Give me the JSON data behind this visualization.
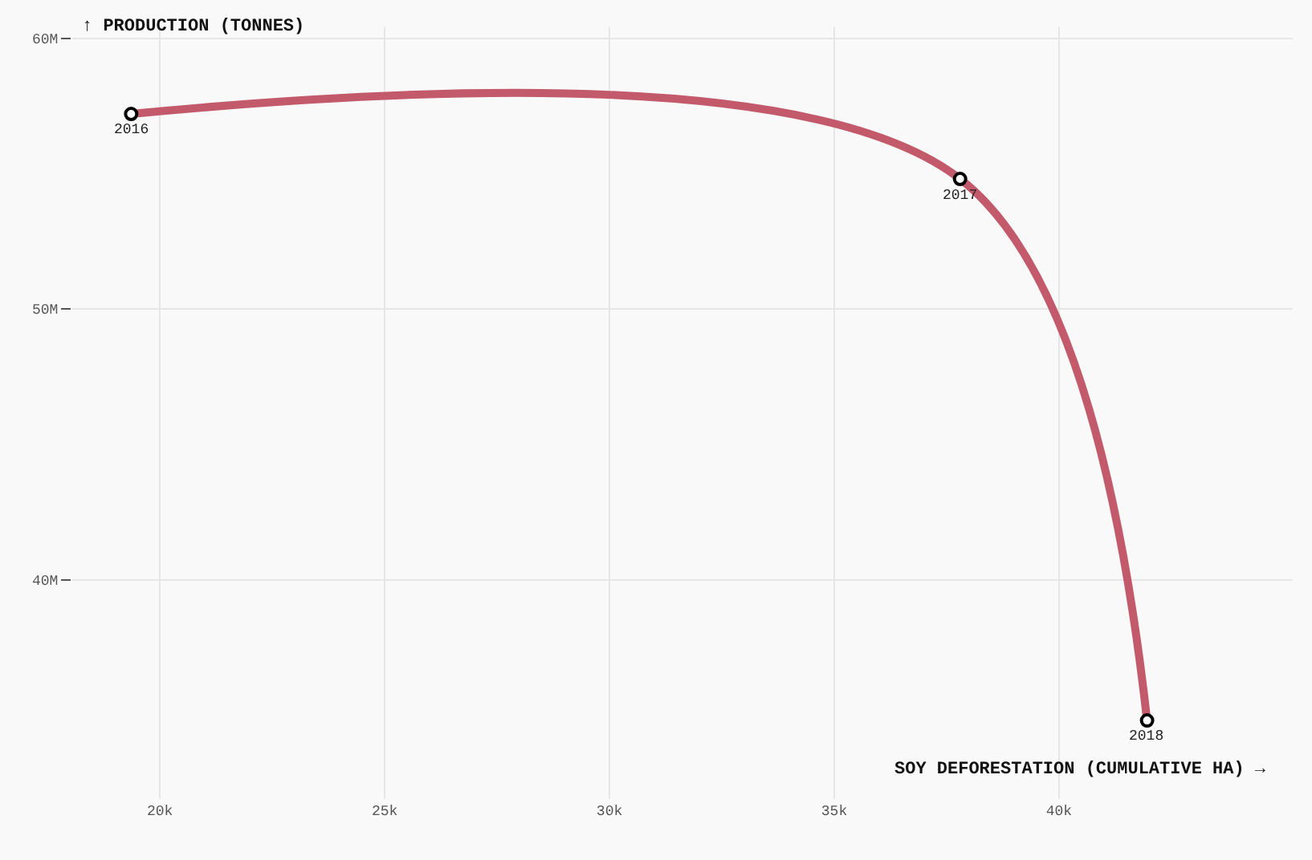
{
  "chart_data": {
    "type": "line",
    "xlabel": "SOY DEFORESTATION (CUMULATIVE HA) →",
    "ylabel": "↑ PRODUCTION (TONNES)",
    "x": [
      19360,
      37800,
      41960
    ],
    "series": [
      {
        "color": "#c25a6b",
        "values": [
          57200000,
          54800000,
          34800000
        ]
      }
    ],
    "annotations": [
      {
        "text": "2016",
        "x": 19360,
        "y": 57200000
      },
      {
        "text": "2017",
        "x": 37800,
        "y": 54800000
      },
      {
        "text": "2018",
        "x": 41960,
        "y": 34800000
      }
    ],
    "xlim": [
      18050,
      45200
    ],
    "xticks": [
      {
        "value": 20000,
        "label": "20k"
      },
      {
        "value": 25000,
        "label": "25k"
      },
      {
        "value": 30000,
        "label": "30k"
      },
      {
        "value": 35000,
        "label": "35k"
      },
      {
        "value": 40000,
        "label": "40k"
      }
    ],
    "ylim": [
      31900000,
      60400000
    ],
    "yticks": [
      {
        "value": 40000000,
        "label": "40M"
      },
      {
        "value": 50000000,
        "label": "50M"
      },
      {
        "value": 60000000,
        "label": "60M"
      }
    ],
    "grid": true,
    "marker": "circle",
    "line_style": "solid"
  }
}
